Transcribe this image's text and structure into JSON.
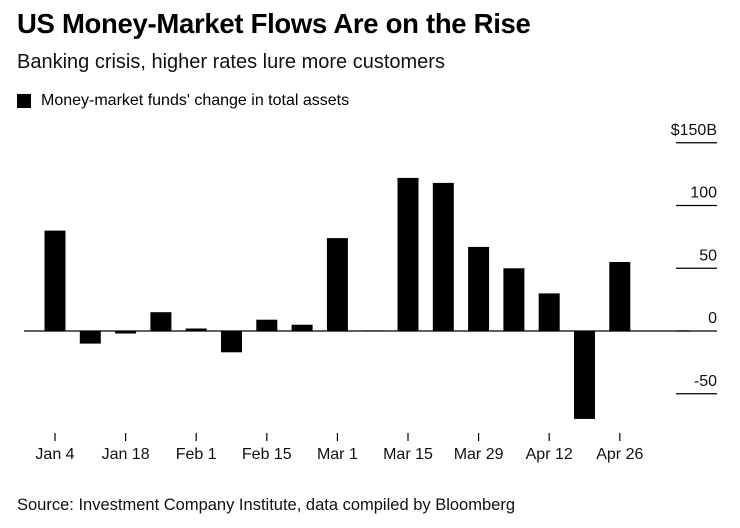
{
  "title": "US Money-Market Flows Are on the Rise",
  "subtitle": "Banking crisis, higher rates lure more customers",
  "legend": {
    "label": "Money-market funds' change in total assets"
  },
  "source": "Source: Investment Company Institute, data compiled by Bloomberg",
  "colors": {
    "bar": "#000000",
    "axis": "#000000",
    "background": "#ffffff"
  },
  "chart_data": {
    "type": "bar",
    "series": [
      {
        "name": "Money-market funds' change in total assets",
        "values": [
          80,
          -10,
          -2,
          15,
          2,
          -17,
          9,
          5,
          74,
          0.5,
          122,
          118,
          67,
          50,
          30,
          -70,
          55
        ]
      }
    ],
    "categories": [
      "Jan 4",
      "Jan 11",
      "Jan 18",
      "Jan 25",
      "Feb 1",
      "Feb 8",
      "Feb 15",
      "Feb 22",
      "Mar 1",
      "Mar 8",
      "Mar 15",
      "Mar 22",
      "Mar 29",
      "Apr 5",
      "Apr 12",
      "Apr 19",
      "Apr 26"
    ],
    "x_tick_labels": [
      "Jan 4",
      "Jan 18",
      "Feb 1",
      "Feb 15",
      "Mar 1",
      "Mar 15",
      "Mar 29",
      "Apr 12",
      "Apr 26"
    ],
    "y_ticks": [
      150,
      100,
      50,
      0,
      -50
    ],
    "y_tick_labels": [
      "$150B",
      "100",
      "50",
      "0",
      "-50"
    ],
    "ylim": [
      -70,
      150
    ],
    "unit": "$B",
    "grid": false,
    "y_axis_side": "right",
    "legend_position": "top-left"
  }
}
